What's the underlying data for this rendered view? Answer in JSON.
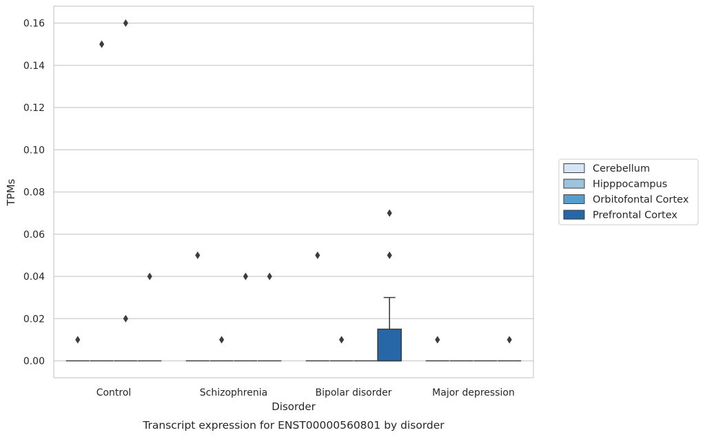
{
  "chart_data": {
    "type": "box",
    "caption": "Transcript expression for ENST00000560801 by disorder",
    "xlabel": "Disorder",
    "ylabel": "TPMs",
    "categories": [
      "Control",
      "Schizophrenia",
      "Bipolar disorder",
      "Major depression"
    ],
    "ylim": [
      -0.008,
      0.168
    ],
    "yticks": [
      0.0,
      0.02,
      0.04,
      0.06,
      0.08,
      0.1,
      0.12,
      0.14,
      0.16
    ],
    "ytick_labels": [
      "0.00",
      "0.02",
      "0.04",
      "0.06",
      "0.08",
      "0.10",
      "0.12",
      "0.14",
      "0.16"
    ],
    "grid": "horizontal",
    "legend_position": "right-center",
    "series": [
      {
        "name": "Cerebellum",
        "color": "#d6e5f3",
        "boxes": [
          {
            "q1": 0,
            "median": 0,
            "q3": 0,
            "whisker_low": 0,
            "whisker_high": 0,
            "outliers": [
              0.01
            ]
          },
          {
            "q1": 0,
            "median": 0,
            "q3": 0,
            "whisker_low": 0,
            "whisker_high": 0,
            "outliers": [
              0.05
            ]
          },
          {
            "q1": 0,
            "median": 0,
            "q3": 0,
            "whisker_low": 0,
            "whisker_high": 0,
            "outliers": [
              0.05
            ]
          },
          {
            "q1": 0,
            "median": 0,
            "q3": 0,
            "whisker_low": 0,
            "whisker_high": 0,
            "outliers": [
              0.01
            ]
          }
        ]
      },
      {
        "name": "Hipppocampus",
        "color": "#9ec4dd",
        "boxes": [
          {
            "q1": 0,
            "median": 0,
            "q3": 0,
            "whisker_low": 0,
            "whisker_high": 0,
            "outliers": [
              0.15
            ]
          },
          {
            "q1": 0,
            "median": 0,
            "q3": 0,
            "whisker_low": 0,
            "whisker_high": 0,
            "outliers": [
              0.01
            ]
          },
          {
            "q1": 0,
            "median": 0,
            "q3": 0,
            "whisker_low": 0,
            "whisker_high": 0,
            "outliers": [
              0.01
            ]
          },
          {
            "q1": 0,
            "median": 0,
            "q3": 0,
            "whisker_low": 0,
            "whisker_high": 0,
            "outliers": []
          }
        ]
      },
      {
        "name": "Orbitofontal Cortex",
        "color": "#5a9dc9",
        "boxes": [
          {
            "q1": 0,
            "median": 0,
            "q3": 0,
            "whisker_low": 0,
            "whisker_high": 0,
            "outliers": [
              0.16,
              0.02
            ]
          },
          {
            "q1": 0,
            "median": 0,
            "q3": 0,
            "whisker_low": 0,
            "whisker_high": 0,
            "outliers": [
              0.04
            ]
          },
          {
            "q1": 0,
            "median": 0,
            "q3": 0,
            "whisker_low": 0,
            "whisker_high": 0,
            "outliers": []
          },
          {
            "q1": 0,
            "median": 0,
            "q3": 0,
            "whisker_low": 0,
            "whisker_high": 0,
            "outliers": []
          }
        ]
      },
      {
        "name": "Prefrontal Cortex",
        "color": "#2767a8",
        "boxes": [
          {
            "q1": 0,
            "median": 0,
            "q3": 0,
            "whisker_low": 0,
            "whisker_high": 0,
            "outliers": [
              0.04
            ]
          },
          {
            "q1": 0,
            "median": 0,
            "q3": 0,
            "whisker_low": 0,
            "whisker_high": 0,
            "outliers": [
              0.04
            ]
          },
          {
            "q1": 0,
            "median": 0,
            "q3": 0.015,
            "whisker_low": 0,
            "whisker_high": 0.03,
            "outliers": [
              0.07,
              0.05
            ]
          },
          {
            "q1": 0,
            "median": 0,
            "q3": 0,
            "whisker_low": 0,
            "whisker_high": 0,
            "outliers": [
              0.01
            ]
          }
        ]
      }
    ]
  }
}
